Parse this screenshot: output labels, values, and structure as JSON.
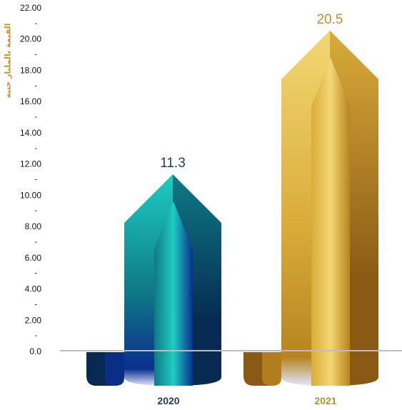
{
  "chart_data": {
    "type": "bar",
    "title": "",
    "ylabel": "القيمة بالمليار جنيه",
    "xlabel": "",
    "categories": [
      "2020",
      "2021"
    ],
    "values": [
      11.3,
      20.5
    ],
    "data_labels": [
      "11.3",
      "20.5"
    ],
    "ylim": [
      0,
      22
    ],
    "yticks": [
      {
        "value": 0,
        "label": "0.0"
      },
      {
        "value": 2,
        "label": "2.00"
      },
      {
        "value": 4,
        "label": "4.00"
      },
      {
        "value": 6,
        "label": "6.00"
      },
      {
        "value": 8,
        "label": "8.00"
      },
      {
        "value": 10,
        "label": "10.00"
      },
      {
        "value": 12,
        "label": "12.00"
      },
      {
        "value": 14,
        "label": "14.00"
      },
      {
        "value": 16,
        "label": "16.00"
      },
      {
        "value": 18,
        "label": "18.00"
      },
      {
        "value": 20,
        "label": "20.00"
      },
      {
        "value": 22,
        "label": "22.00"
      }
    ],
    "minor_tick_mark": "-",
    "grid": false,
    "legend": "none",
    "colors": {
      "2020": {
        "light": "#1ecdc2",
        "mid": "#0f7a86",
        "dark": "#062a52",
        "deep": "#0a2f8c",
        "label": "#1f3a5c"
      },
      "2021": {
        "light": "#f3d774",
        "mid": "#d9ac3a",
        "dark": "#8a5a14",
        "deep": "#b7841f",
        "label": "#b8902e"
      },
      "axis": "#bdbdbd",
      "tick_text": "#111111"
    }
  }
}
